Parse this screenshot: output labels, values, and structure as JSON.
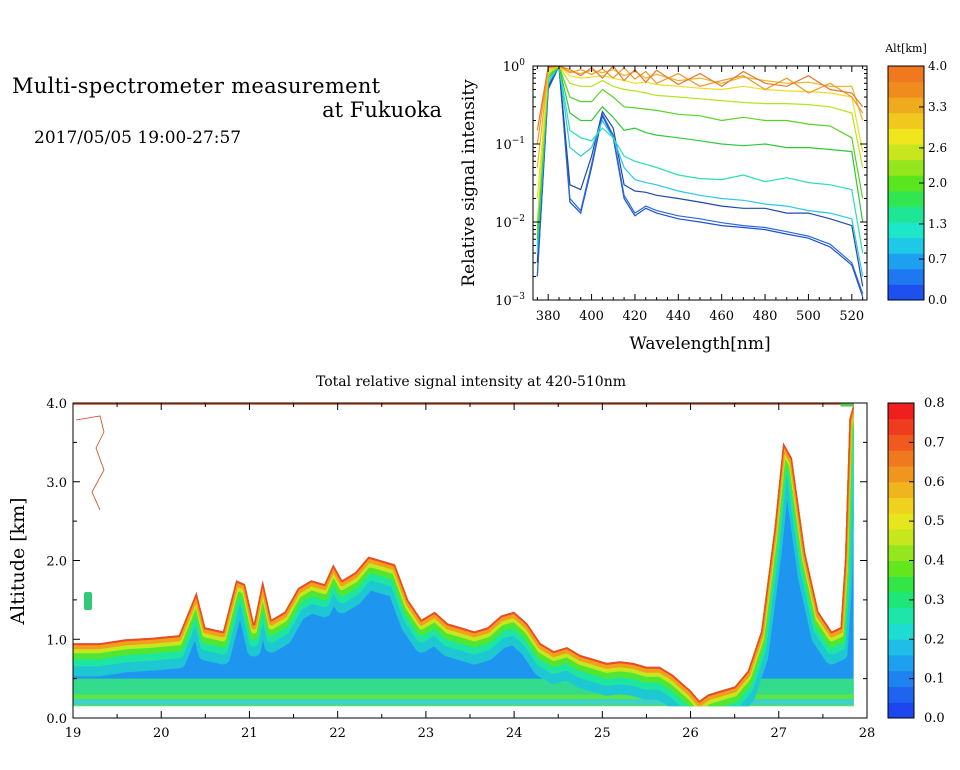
{
  "header": {
    "title_line1": "Multi-spectrometer measurement",
    "title_line2": "at Fukuoka",
    "date_range": "2017/05/05 19:00-27:57"
  },
  "chart_data": [
    {
      "type": "line",
      "title": "",
      "xlabel": "Wavelength[nm]",
      "ylabel": "Relative signal intensity",
      "xlim": [
        373,
        527
      ],
      "ylim": [
        0.001,
        1
      ],
      "yscale": "log",
      "xticks": [
        380,
        400,
        420,
        440,
        460,
        480,
        500,
        520
      ],
      "yticks": [
        {
          "value": 1,
          "label_base": "10",
          "label_exp": "0"
        },
        {
          "value": 0.1,
          "label_base": "10",
          "label_exp": "−1"
        },
        {
          "value": 0.01,
          "label_base": "10",
          "label_exp": "−2"
        },
        {
          "value": 0.001,
          "label_base": "10",
          "label_exp": "−3"
        }
      ],
      "x": [
        375,
        380,
        385,
        390,
        395,
        400,
        405,
        410,
        415,
        420,
        425,
        430,
        440,
        450,
        460,
        470,
        480,
        490,
        500,
        510,
        520,
        525
      ],
      "colorbar": {
        "title": "Alt[km]",
        "tick_labels": [
          "0.0",
          "0.7",
          "1.3",
          "2.0",
          "2.6",
          "3.3",
          "4.0"
        ],
        "levels": [
          0,
          4
        ],
        "colors": [
          "#1e50f0",
          "#1e78f0",
          "#1ea0f0",
          "#1ec8e6",
          "#1ee6c8",
          "#1ee696",
          "#32e650",
          "#5ae61e",
          "#96e61e",
          "#c8e61e",
          "#f0e61e",
          "#f0c81e",
          "#f0aa1e",
          "#f08c1e",
          "#f0781e"
        ]
      },
      "series": [
        {
          "alt": 0.1,
          "color": "#1e50d0",
          "values": [
            0.002,
            0.5,
            1.0,
            0.018,
            0.013,
            0.05,
            0.23,
            0.12,
            0.02,
            0.012,
            0.015,
            0.013,
            0.011,
            0.01,
            0.009,
            0.0085,
            0.008,
            0.007,
            0.0062,
            0.0048,
            0.0028,
            0.0011
          ]
        },
        {
          "alt": 0.3,
          "color": "#2a6ad8",
          "values": [
            0.002,
            0.52,
            1.0,
            0.02,
            0.014,
            0.055,
            0.24,
            0.13,
            0.022,
            0.013,
            0.016,
            0.014,
            0.012,
            0.011,
            0.0098,
            0.009,
            0.0085,
            0.0075,
            0.0066,
            0.0052,
            0.003,
            0.0012
          ]
        },
        {
          "alt": 0.5,
          "color": "#1e4aa8",
          "values": [
            0.003,
            0.55,
            1.0,
            0.03,
            0.026,
            0.07,
            0.26,
            0.16,
            0.03,
            0.025,
            0.024,
            0.022,
            0.02,
            0.018,
            0.016,
            0.015,
            0.015,
            0.013,
            0.013,
            0.011,
            0.009,
            0.0015
          ]
        },
        {
          "alt": 1.2,
          "color": "#2ac8e6",
          "values": [
            0.004,
            0.6,
            1.0,
            0.09,
            0.07,
            0.09,
            0.2,
            0.12,
            0.05,
            0.035,
            0.032,
            0.03,
            0.025,
            0.022,
            0.02,
            0.019,
            0.017,
            0.016,
            0.014,
            0.013,
            0.011,
            0.002
          ]
        },
        {
          "alt": 1.6,
          "color": "#28e0b4",
          "values": [
            0.005,
            0.65,
            1.0,
            0.15,
            0.12,
            0.11,
            0.16,
            0.12,
            0.07,
            0.06,
            0.055,
            0.05,
            0.04,
            0.036,
            0.035,
            0.04,
            0.033,
            0.037,
            0.032,
            0.03,
            0.026,
            0.004
          ]
        },
        {
          "alt": 2.0,
          "color": "#32c83c",
          "values": [
            0.006,
            0.7,
            1.0,
            0.25,
            0.2,
            0.2,
            0.3,
            0.22,
            0.15,
            0.16,
            0.14,
            0.13,
            0.12,
            0.11,
            0.1,
            0.095,
            0.1,
            0.09,
            0.09,
            0.085,
            0.08,
            0.01
          ]
        },
        {
          "alt": 2.3,
          "color": "#5ad228",
          "values": [
            0.008,
            0.75,
            1.0,
            0.4,
            0.35,
            0.35,
            0.5,
            0.4,
            0.3,
            0.29,
            0.28,
            0.27,
            0.24,
            0.23,
            0.2,
            0.22,
            0.2,
            0.2,
            0.18,
            0.17,
            0.12,
            0.02
          ]
        },
        {
          "alt": 2.6,
          "color": "#b4e61e",
          "values": [
            0.01,
            0.8,
            1.0,
            0.6,
            0.55,
            0.55,
            0.65,
            0.55,
            0.5,
            0.48,
            0.45,
            0.42,
            0.4,
            0.38,
            0.36,
            0.34,
            0.33,
            0.33,
            0.32,
            0.3,
            0.25,
            0.05
          ]
        },
        {
          "alt": 3.0,
          "color": "#f0dc1e",
          "values": [
            0.02,
            0.85,
            1.0,
            0.75,
            0.7,
            0.72,
            0.75,
            0.7,
            0.65,
            0.6,
            0.62,
            0.58,
            0.55,
            0.52,
            0.5,
            0.55,
            0.5,
            0.48,
            0.47,
            0.45,
            0.4,
            0.08
          ]
        },
        {
          "alt": 3.3,
          "color": "#f0b41e",
          "values": [
            0.05,
            0.9,
            1.0,
            0.85,
            0.8,
            0.88,
            0.82,
            0.9,
            0.75,
            0.85,
            0.7,
            0.78,
            0.65,
            0.7,
            0.6,
            0.72,
            0.65,
            0.6,
            0.62,
            0.55,
            0.55,
            0.2
          ]
        },
        {
          "alt": 3.6,
          "color": "#f09628",
          "values": [
            0.1,
            0.95,
            1.0,
            0.82,
            0.9,
            0.78,
            0.92,
            0.7,
            0.95,
            0.68,
            0.85,
            0.6,
            0.8,
            0.55,
            0.65,
            0.75,
            0.5,
            0.7,
            0.45,
            0.6,
            0.4,
            0.25
          ]
        },
        {
          "alt": 3.9,
          "color": "#e67832",
          "values": [
            0.15,
            0.98,
            1.0,
            0.9,
            0.75,
            0.95,
            0.7,
            1.0,
            0.65,
            0.9,
            0.62,
            0.88,
            0.58,
            0.8,
            0.55,
            0.85,
            0.6,
            0.55,
            0.75,
            0.5,
            0.45,
            0.3
          ]
        }
      ]
    },
    {
      "type": "heatmap",
      "title": "Total relative signal intensity at 420-510nm",
      "xlabel": "",
      "ylabel": "Altitude [km]",
      "xlim": [
        19,
        28
      ],
      "ylim": [
        0,
        4
      ],
      "xticks": [
        19,
        20,
        21,
        22,
        23,
        24,
        25,
        26,
        27,
        28
      ],
      "yticks": [
        {
          "value": 0,
          "label": "0.0"
        },
        {
          "value": 1,
          "label": "1.0"
        },
        {
          "value": 2,
          "label": "2.0"
        },
        {
          "value": 3,
          "label": "3.0"
        },
        {
          "value": 4,
          "label": "4.0"
        }
      ],
      "data_xlim": [
        19.0,
        27.85
      ],
      "data_ymin": 0.15,
      "layer_top": {
        "x": [
          19.0,
          19.3,
          19.6,
          19.9,
          20.2,
          20.4,
          20.5,
          20.7,
          20.85,
          20.95,
          21.05,
          21.15,
          21.25,
          21.4,
          21.55,
          21.7,
          21.85,
          21.95,
          22.05,
          22.2,
          22.35,
          22.5,
          22.65,
          22.8,
          22.95,
          23.1,
          23.25,
          23.4,
          23.55,
          23.7,
          23.85,
          24.0,
          24.15,
          24.3,
          24.45,
          24.6,
          24.75,
          24.9,
          25.05,
          25.2,
          25.35,
          25.5,
          25.65,
          25.8,
          25.9,
          26.0,
          26.1,
          26.2,
          26.35,
          26.5,
          26.65,
          26.8,
          26.95,
          27.05,
          27.15,
          27.3,
          27.45,
          27.6,
          27.7,
          27.75,
          27.8,
          27.85
        ],
        "alt": [
          0.95,
          0.95,
          1.0,
          1.02,
          1.05,
          1.6,
          1.15,
          1.1,
          1.75,
          1.7,
          1.2,
          1.75,
          1.25,
          1.35,
          1.65,
          1.75,
          1.7,
          1.95,
          1.75,
          1.85,
          2.05,
          2.0,
          1.95,
          1.5,
          1.25,
          1.35,
          1.2,
          1.15,
          1.1,
          1.15,
          1.3,
          1.35,
          1.2,
          0.95,
          0.85,
          0.9,
          0.8,
          0.75,
          0.7,
          0.72,
          0.7,
          0.65,
          0.65,
          0.55,
          0.45,
          0.35,
          0.22,
          0.3,
          0.35,
          0.4,
          0.6,
          1.1,
          2.4,
          3.5,
          3.3,
          2.1,
          1.35,
          1.1,
          1.15,
          2.0,
          3.8,
          4.0
        ]
      },
      "colorbar": {
        "tick_labels": [
          "0.0",
          "0.1",
          "0.2",
          "0.3",
          "0.4",
          "0.5",
          "0.6",
          "0.7",
          "0.8"
        ],
        "levels": [
          0,
          0.8
        ],
        "colors": [
          "#1e46f0",
          "#1e64f0",
          "#1e82f0",
          "#1ea0f0",
          "#1ebee6",
          "#1edcd2",
          "#1ee6aa",
          "#1ee678",
          "#32e646",
          "#64e61e",
          "#96e61e",
          "#c8e61e",
          "#e6e61e",
          "#f0d21e",
          "#f0b41e",
          "#f0961e",
          "#f0781e",
          "#f05a1e",
          "#f03c1e",
          "#f01e1e"
        ]
      }
    }
  ]
}
